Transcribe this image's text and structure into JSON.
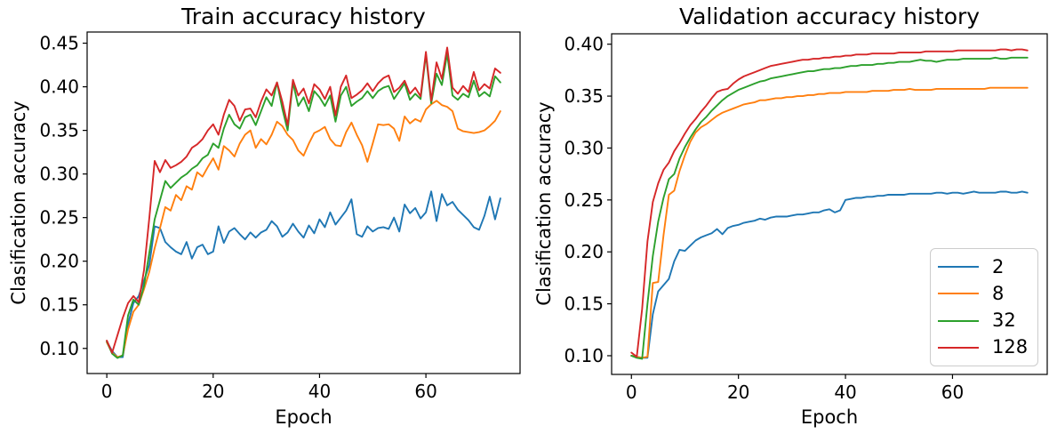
{
  "figure": {
    "background": "#ffffff",
    "text_color": "#000000",
    "legend_border_color": "#cccccc"
  },
  "chart_data": [
    {
      "id": "train",
      "type": "line",
      "title": "Train accuracy history",
      "xlabel": "Epoch",
      "ylabel": "Clasification accuracy",
      "xlim": [
        -3.7,
        77.7
      ],
      "ylim": [
        0.0712,
        0.4628
      ],
      "xticks": [
        0,
        20,
        40,
        60
      ],
      "yticks": [
        0.1,
        0.15,
        0.2,
        0.25,
        0.3,
        0.35,
        0.4,
        0.45
      ],
      "grid": false,
      "legend_position": "none",
      "x": [
        0,
        1,
        2,
        3,
        4,
        5,
        6,
        7,
        8,
        9,
        10,
        11,
        12,
        13,
        14,
        15,
        16,
        17,
        18,
        19,
        20,
        21,
        22,
        23,
        24,
        25,
        26,
        27,
        28,
        29,
        30,
        31,
        32,
        33,
        34,
        35,
        36,
        37,
        38,
        39,
        40,
        41,
        42,
        43,
        44,
        45,
        46,
        47,
        48,
        49,
        50,
        51,
        52,
        53,
        54,
        55,
        56,
        57,
        58,
        59,
        60,
        61,
        62,
        63,
        64,
        65,
        66,
        67,
        68,
        69,
        70,
        71,
        72,
        73,
        74
      ],
      "series": [
        {
          "name": "2",
          "color": "#1f77b4",
          "values": [
            0.108,
            0.097,
            0.09,
            0.09,
            0.128,
            0.152,
            0.16,
            0.178,
            0.196,
            0.24,
            0.238,
            0.222,
            0.216,
            0.211,
            0.208,
            0.222,
            0.203,
            0.216,
            0.219,
            0.208,
            0.211,
            0.24,
            0.221,
            0.234,
            0.238,
            0.231,
            0.225,
            0.233,
            0.227,
            0.233,
            0.236,
            0.246,
            0.24,
            0.228,
            0.233,
            0.243,
            0.234,
            0.227,
            0.241,
            0.232,
            0.248,
            0.239,
            0.256,
            0.242,
            0.25,
            0.258,
            0.271,
            0.231,
            0.228,
            0.24,
            0.234,
            0.238,
            0.239,
            0.237,
            0.25,
            0.234,
            0.265,
            0.255,
            0.261,
            0.249,
            0.256,
            0.28,
            0.246,
            0.277,
            0.264,
            0.268,
            0.259,
            0.253,
            0.247,
            0.239,
            0.236,
            0.252,
            0.274,
            0.248,
            0.272
          ]
        },
        {
          "name": "8",
          "color": "#ff7f0e",
          "values": [
            0.107,
            0.095,
            0.09,
            0.092,
            0.122,
            0.142,
            0.15,
            0.168,
            0.188,
            0.215,
            0.238,
            0.262,
            0.258,
            0.276,
            0.27,
            0.286,
            0.282,
            0.302,
            0.297,
            0.308,
            0.318,
            0.305,
            0.332,
            0.327,
            0.32,
            0.335,
            0.345,
            0.35,
            0.33,
            0.34,
            0.334,
            0.345,
            0.36,
            0.355,
            0.345,
            0.339,
            0.327,
            0.321,
            0.335,
            0.347,
            0.35,
            0.354,
            0.34,
            0.333,
            0.332,
            0.348,
            0.359,
            0.345,
            0.333,
            0.314,
            0.335,
            0.357,
            0.356,
            0.357,
            0.352,
            0.338,
            0.366,
            0.358,
            0.363,
            0.36,
            0.374,
            0.38,
            0.384,
            0.379,
            0.377,
            0.372,
            0.352,
            0.349,
            0.348,
            0.347,
            0.348,
            0.35,
            0.355,
            0.361,
            0.372
          ]
        },
        {
          "name": "32",
          "color": "#2ca02c",
          "values": [
            0.108,
            0.094,
            0.089,
            0.092,
            0.138,
            0.156,
            0.15,
            0.172,
            0.21,
            0.248,
            0.27,
            0.292,
            0.284,
            0.29,
            0.296,
            0.3,
            0.306,
            0.31,
            0.318,
            0.322,
            0.335,
            0.33,
            0.352,
            0.368,
            0.357,
            0.352,
            0.365,
            0.368,
            0.356,
            0.372,
            0.388,
            0.378,
            0.405,
            0.375,
            0.35,
            0.405,
            0.378,
            0.388,
            0.372,
            0.395,
            0.388,
            0.378,
            0.39,
            0.36,
            0.39,
            0.4,
            0.378,
            0.383,
            0.387,
            0.395,
            0.387,
            0.395,
            0.399,
            0.401,
            0.386,
            0.395,
            0.404,
            0.385,
            0.392,
            0.386,
            0.437,
            0.381,
            0.415,
            0.402,
            0.438,
            0.39,
            0.385,
            0.392,
            0.388,
            0.407,
            0.389,
            0.394,
            0.389,
            0.412,
            0.405
          ]
        },
        {
          "name": "128",
          "color": "#d62728",
          "values": [
            0.109,
            0.095,
            0.115,
            0.135,
            0.152,
            0.16,
            0.153,
            0.19,
            0.25,
            0.315,
            0.302,
            0.316,
            0.307,
            0.31,
            0.314,
            0.32,
            0.33,
            0.334,
            0.34,
            0.35,
            0.357,
            0.345,
            0.368,
            0.385,
            0.378,
            0.361,
            0.374,
            0.375,
            0.365,
            0.383,
            0.397,
            0.39,
            0.405,
            0.383,
            0.356,
            0.408,
            0.39,
            0.398,
            0.381,
            0.403,
            0.397,
            0.386,
            0.4,
            0.367,
            0.4,
            0.413,
            0.387,
            0.391,
            0.396,
            0.404,
            0.395,
            0.404,
            0.41,
            0.413,
            0.394,
            0.399,
            0.407,
            0.392,
            0.399,
            0.389,
            0.44,
            0.384,
            0.428,
            0.409,
            0.445,
            0.399,
            0.392,
            0.401,
            0.394,
            0.417,
            0.396,
            0.403,
            0.398,
            0.421,
            0.416
          ]
        }
      ]
    },
    {
      "id": "validation",
      "type": "line",
      "title": "Validation accuracy history",
      "xlabel": "Epoch",
      "ylabel": "Clasification accuracy",
      "xlim": [
        -3.7,
        77.7
      ],
      "ylim": [
        0.082,
        0.41
      ],
      "xticks": [
        0,
        20,
        40,
        60
      ],
      "yticks": [
        0.1,
        0.15,
        0.2,
        0.25,
        0.3,
        0.35,
        0.4
      ],
      "grid": false,
      "legend_position": "lower right",
      "x": [
        0,
        1,
        2,
        3,
        4,
        5,
        6,
        7,
        8,
        9,
        10,
        11,
        12,
        13,
        14,
        15,
        16,
        17,
        18,
        19,
        20,
        21,
        22,
        23,
        24,
        25,
        26,
        27,
        28,
        29,
        30,
        31,
        32,
        33,
        34,
        35,
        36,
        37,
        38,
        39,
        40,
        41,
        42,
        43,
        44,
        45,
        46,
        47,
        48,
        49,
        50,
        51,
        52,
        53,
        54,
        55,
        56,
        57,
        58,
        59,
        60,
        61,
        62,
        63,
        64,
        65,
        66,
        67,
        68,
        69,
        70,
        71,
        72,
        73,
        74
      ],
      "series": [
        {
          "name": "2",
          "color": "#1f77b4",
          "values": [
            0.1,
            0.099,
            0.098,
            0.098,
            0.14,
            0.162,
            0.168,
            0.174,
            0.191,
            0.202,
            0.201,
            0.206,
            0.211,
            0.214,
            0.216,
            0.218,
            0.222,
            0.217,
            0.223,
            0.225,
            0.226,
            0.228,
            0.229,
            0.23,
            0.232,
            0.231,
            0.233,
            0.234,
            0.234,
            0.234,
            0.235,
            0.236,
            0.236,
            0.237,
            0.238,
            0.238,
            0.24,
            0.241,
            0.238,
            0.24,
            0.25,
            0.251,
            0.252,
            0.252,
            0.253,
            0.253,
            0.254,
            0.254,
            0.255,
            0.255,
            0.255,
            0.255,
            0.256,
            0.256,
            0.256,
            0.256,
            0.256,
            0.257,
            0.257,
            0.256,
            0.257,
            0.257,
            0.256,
            0.257,
            0.258,
            0.257,
            0.257,
            0.257,
            0.257,
            0.258,
            0.258,
            0.257,
            0.257,
            0.258,
            0.257
          ]
        },
        {
          "name": "8",
          "color": "#ff7f0e",
          "values": [
            0.1,
            0.099,
            0.098,
            0.099,
            0.17,
            0.171,
            0.216,
            0.255,
            0.259,
            0.278,
            0.293,
            0.306,
            0.315,
            0.32,
            0.323,
            0.327,
            0.331,
            0.334,
            0.336,
            0.338,
            0.34,
            0.342,
            0.343,
            0.344,
            0.346,
            0.346,
            0.347,
            0.348,
            0.348,
            0.349,
            0.349,
            0.35,
            0.35,
            0.351,
            0.351,
            0.352,
            0.352,
            0.353,
            0.353,
            0.353,
            0.354,
            0.354,
            0.354,
            0.354,
            0.354,
            0.355,
            0.355,
            0.355,
            0.355,
            0.356,
            0.356,
            0.356,
            0.357,
            0.356,
            0.356,
            0.356,
            0.356,
            0.357,
            0.357,
            0.357,
            0.357,
            0.357,
            0.357,
            0.357,
            0.357,
            0.357,
            0.357,
            0.358,
            0.358,
            0.358,
            0.358,
            0.358,
            0.358,
            0.358,
            0.358
          ]
        },
        {
          "name": "32",
          "color": "#2ca02c",
          "values": [
            0.1,
            0.098,
            0.097,
            0.15,
            0.196,
            0.229,
            0.252,
            0.27,
            0.275,
            0.29,
            0.301,
            0.31,
            0.318,
            0.325,
            0.33,
            0.336,
            0.341,
            0.346,
            0.35,
            0.353,
            0.356,
            0.358,
            0.36,
            0.362,
            0.364,
            0.365,
            0.367,
            0.368,
            0.369,
            0.37,
            0.371,
            0.372,
            0.373,
            0.374,
            0.374,
            0.375,
            0.376,
            0.376,
            0.377,
            0.377,
            0.378,
            0.379,
            0.379,
            0.38,
            0.38,
            0.38,
            0.381,
            0.381,
            0.382,
            0.382,
            0.383,
            0.383,
            0.383,
            0.384,
            0.385,
            0.384,
            0.384,
            0.383,
            0.384,
            0.385,
            0.385,
            0.385,
            0.386,
            0.386,
            0.386,
            0.386,
            0.386,
            0.386,
            0.387,
            0.386,
            0.386,
            0.387,
            0.387,
            0.387,
            0.387
          ]
        },
        {
          "name": "128",
          "color": "#d62728",
          "values": [
            0.103,
            0.099,
            0.145,
            0.21,
            0.248,
            0.266,
            0.279,
            0.286,
            0.297,
            0.305,
            0.314,
            0.322,
            0.328,
            0.335,
            0.341,
            0.348,
            0.354,
            0.356,
            0.357,
            0.362,
            0.366,
            0.369,
            0.371,
            0.373,
            0.375,
            0.377,
            0.379,
            0.38,
            0.381,
            0.382,
            0.383,
            0.384,
            0.385,
            0.385,
            0.386,
            0.386,
            0.387,
            0.387,
            0.388,
            0.388,
            0.389,
            0.389,
            0.39,
            0.39,
            0.39,
            0.391,
            0.391,
            0.391,
            0.391,
            0.391,
            0.392,
            0.392,
            0.392,
            0.392,
            0.392,
            0.393,
            0.393,
            0.393,
            0.393,
            0.393,
            0.393,
            0.394,
            0.394,
            0.394,
            0.394,
            0.394,
            0.394,
            0.394,
            0.394,
            0.395,
            0.395,
            0.394,
            0.395,
            0.395,
            0.394
          ]
        }
      ]
    }
  ]
}
